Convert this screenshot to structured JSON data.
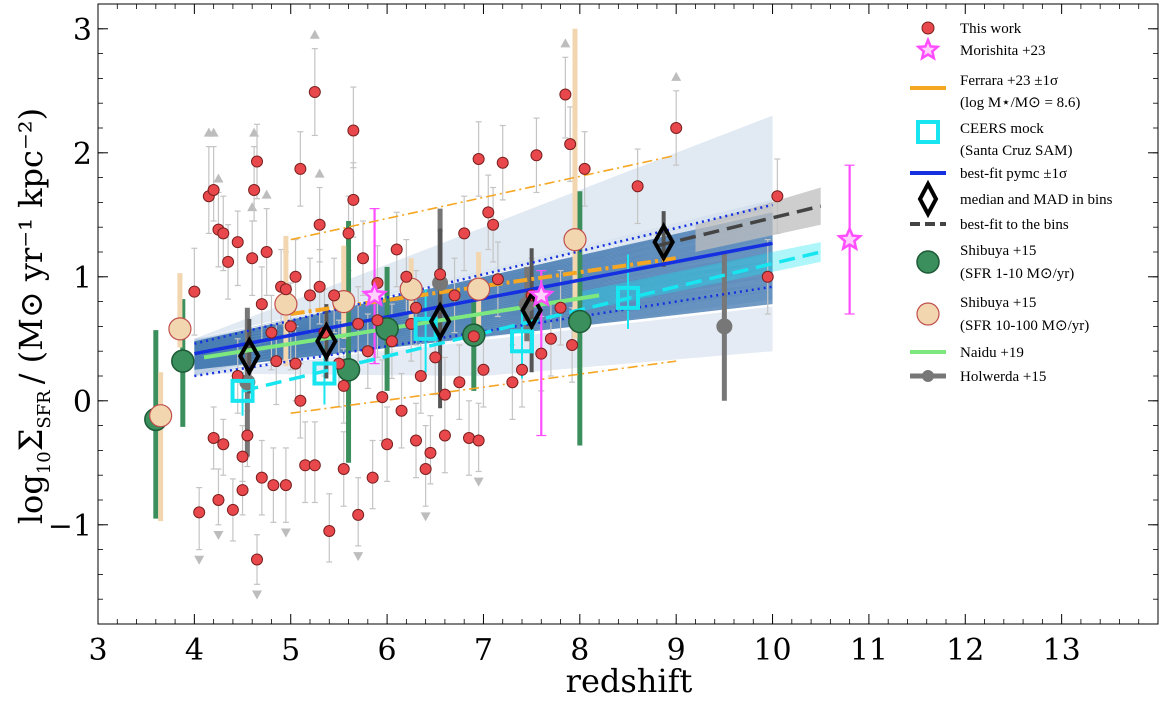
{
  "chart_data": {
    "type": "scatter",
    "xlabel": "redshift",
    "ylabel": "log10 ΣSFR / (M⊙ yr⁻¹ kpc⁻²)",
    "ylabel_parts": {
      "prefix": "log",
      "sub10": "10",
      "sigma": "Σ",
      "sub_sfr": "SFR",
      "units": "/ (M⊙ yr⁻¹ kpc⁻²)"
    },
    "xlim": [
      3,
      14
    ],
    "ylim": [
      -1.8,
      3.2
    ],
    "xticks": [
      3,
      4,
      5,
      6,
      7,
      8,
      9,
      10,
      11,
      12,
      13
    ],
    "yticks": [
      -1,
      0,
      1,
      2,
      3
    ],
    "ytick_labels": [
      "−1",
      "0",
      "1",
      "2",
      "3"
    ],
    "legend_position": "top-right",
    "legend": [
      {
        "name": "This work",
        "name2": ""
      },
      {
        "name": "Morishita +23",
        "name2": ""
      },
      {
        "name": "Ferrara +23 ±1σ",
        "name2": "(log M⋆/M⊙ = 8.6)"
      },
      {
        "name": "CEERS mock",
        "name2": "(Santa Cruz SAM)"
      },
      {
        "name": "best-fit pymc ±1σ",
        "name2": ""
      },
      {
        "name": "median and MAD in bins",
        "name2": ""
      },
      {
        "name": "best-fit to the bins",
        "name2": ""
      },
      {
        "name": "Shibuya +15",
        "name2": "(SFR 1-10 M⊙/yr)"
      },
      {
        "name": "Shibuya +15",
        "name2": "(SFR 10-100 M⊙/yr)"
      },
      {
        "name": "Naidu +19",
        "name2": ""
      },
      {
        "name": "Holwerda +15",
        "name2": ""
      }
    ],
    "colors": {
      "this_work": "#e8484b",
      "morishita": "#ff4dff",
      "ferrara": "#f5a623",
      "ceers": "#17e6f0",
      "pymc": "#1530e0",
      "pymc_band": "#3a7bbd",
      "median": "#000000",
      "bins_fit": "#444444",
      "shibuya_low": "#3a8f5c",
      "shibuya_high": "#f2d6b0",
      "naidu": "#7de87d",
      "holwerda": "#777777"
    },
    "pymc_fit": {
      "x": [
        4,
        10
      ],
      "y": [
        0.38,
        1.27
      ],
      "band_low": [
        0.2,
        0.82
      ],
      "band_high": [
        0.5,
        1.62
      ]
    },
    "pymc_sigma": {
      "upper": [
        [
          4,
          0.46
        ],
        [
          10,
          1.58
        ]
      ],
      "lower": [
        [
          4,
          0.2
        ],
        [
          10,
          0.92
        ]
      ]
    },
    "bins_fit": {
      "x": [
        8.8,
        10.5
      ],
      "y": [
        1.25,
        1.57
      ]
    },
    "ferrara": {
      "mid": [
        [
          5,
          0.7
        ],
        [
          9,
          1.15
        ]
      ],
      "upper": [
        [
          5,
          1.3
        ],
        [
          9,
          1.98
        ]
      ],
      "lower": [
        [
          5,
          -0.1
        ],
        [
          9,
          0.32
        ]
      ]
    },
    "ceers_fit": [
      [
        4.5,
        0.08
      ],
      [
        10.5,
        1.2
      ]
    ],
    "naidu_fit": [
      [
        4.1,
        0.35
      ],
      [
        8.2,
        0.85
      ]
    ],
    "this_work": [
      [
        4.0,
        0.88,
        0.35,
        0.35,
        false
      ],
      [
        4.05,
        -0.9,
        0.3,
        0.2,
        true
      ],
      [
        4.15,
        1.65,
        0.3,
        0.4,
        true
      ],
      [
        4.2,
        1.7,
        0.25,
        0.35,
        true
      ],
      [
        4.25,
        1.38,
        0.3,
        0.3,
        true
      ],
      [
        4.3,
        1.35,
        0.3,
        0.3,
        false
      ],
      [
        4.2,
        -0.3,
        0.25,
        0.25,
        false
      ],
      [
        4.25,
        -0.8,
        0.2,
        0.25,
        true
      ],
      [
        4.3,
        -0.35,
        0.25,
        0.2,
        false
      ],
      [
        4.35,
        1.12,
        0.3,
        0.3,
        false
      ],
      [
        4.4,
        -0.88,
        0.25,
        0.25,
        false
      ],
      [
        4.45,
        1.28,
        0.35,
        0.25,
        false
      ],
      [
        4.5,
        -0.45,
        0.2,
        0.25,
        true
      ],
      [
        4.5,
        -0.72,
        0.2,
        0.3,
        false
      ],
      [
        4.55,
        -0.28,
        0.25,
        0.2,
        false
      ],
      [
        4.6,
        1.15,
        0.3,
        0.3,
        true
      ],
      [
        4.62,
        1.7,
        0.25,
        0.35,
        true
      ],
      [
        4.65,
        1.93,
        0.3,
        0.3,
        false
      ],
      [
        4.65,
        -1.28,
        0.2,
        0.2,
        true
      ],
      [
        4.7,
        -0.62,
        0.3,
        0.3,
        false
      ],
      [
        4.7,
        0.78,
        0.3,
        0.3,
        false
      ],
      [
        4.75,
        1.2,
        0.35,
        0.35,
        true
      ],
      [
        4.8,
        0.55,
        0.3,
        0.3,
        false
      ],
      [
        4.82,
        -0.68,
        0.3,
        0.3,
        false
      ],
      [
        4.85,
        0.32,
        0.35,
        0.3,
        false
      ],
      [
        4.9,
        0.92,
        0.3,
        0.3,
        false
      ],
      [
        4.95,
        -0.68,
        0.3,
        0.3,
        true
      ],
      [
        5.0,
        0.6,
        0.35,
        0.35,
        false
      ],
      [
        5.05,
        1.0,
        0.3,
        0.3,
        false
      ],
      [
        5.1,
        0.0,
        0.3,
        0.3,
        false
      ],
      [
        5.1,
        1.87,
        0.3,
        0.3,
        false
      ],
      [
        5.15,
        -0.52,
        0.3,
        0.35,
        false
      ],
      [
        5.2,
        0.85,
        0.3,
        0.3,
        false
      ],
      [
        5.25,
        2.49,
        0.35,
        0.35,
        true
      ],
      [
        5.25,
        -0.52,
        0.3,
        0.35,
        false
      ],
      [
        5.3,
        1.42,
        0.3,
        0.3,
        true
      ],
      [
        5.35,
        0.55,
        0.35,
        0.35,
        false
      ],
      [
        5.4,
        -1.05,
        0.25,
        0.3,
        false
      ],
      [
        5.45,
        0.85,
        0.3,
        0.3,
        false
      ],
      [
        5.5,
        0.3,
        0.35,
        0.35,
        false
      ],
      [
        5.55,
        -0.55,
        0.3,
        0.3,
        false
      ],
      [
        5.6,
        1.35,
        0.3,
        0.3,
        false
      ],
      [
        5.65,
        2.18,
        0.3,
        0.35,
        false
      ],
      [
        5.65,
        1.62,
        0.3,
        0.3,
        false
      ],
      [
        5.7,
        -0.92,
        0.25,
        0.3,
        true
      ],
      [
        5.7,
        0.62,
        0.3,
        0.3,
        false
      ],
      [
        5.75,
        1.15,
        0.3,
        0.3,
        false
      ],
      [
        5.8,
        0.4,
        0.3,
        0.3,
        false
      ],
      [
        5.85,
        -0.62,
        0.25,
        0.3,
        false
      ],
      [
        5.9,
        0.95,
        0.3,
        0.3,
        false
      ],
      [
        5.95,
        0.03,
        0.35,
        0.3,
        false
      ],
      [
        6.0,
        -0.35,
        0.3,
        0.3,
        false
      ],
      [
        6.05,
        0.48,
        0.3,
        0.3,
        false
      ],
      [
        6.1,
        1.22,
        0.3,
        0.3,
        false
      ],
      [
        6.15,
        -0.08,
        0.3,
        0.3,
        false
      ],
      [
        6.2,
        1.0,
        0.3,
        0.3,
        false
      ],
      [
        6.25,
        0.62,
        0.3,
        0.3,
        false
      ],
      [
        6.3,
        -0.32,
        0.3,
        0.3,
        false
      ],
      [
        6.35,
        0.2,
        0.3,
        0.3,
        false
      ],
      [
        6.4,
        -0.55,
        0.3,
        0.35,
        true
      ],
      [
        6.45,
        -0.42,
        0.25,
        0.3,
        false
      ],
      [
        6.5,
        0.35,
        0.3,
        0.3,
        false
      ],
      [
        6.55,
        1.02,
        0.3,
        0.35,
        false
      ],
      [
        6.6,
        0.05,
        0.3,
        0.3,
        false
      ],
      [
        6.6,
        -0.28,
        0.3,
        0.3,
        false
      ],
      [
        6.7,
        0.85,
        0.3,
        0.3,
        false
      ],
      [
        6.75,
        0.15,
        0.3,
        0.3,
        false
      ],
      [
        6.8,
        1.35,
        0.3,
        0.3,
        false
      ],
      [
        6.85,
        -0.3,
        0.3,
        0.3,
        false
      ],
      [
        6.9,
        0.52,
        0.3,
        0.3,
        false
      ],
      [
        6.95,
        1.95,
        0.3,
        0.3,
        false
      ],
      [
        6.95,
        -0.32,
        0.25,
        0.3,
        true
      ],
      [
        7.0,
        0.25,
        0.3,
        0.3,
        false
      ],
      [
        7.05,
        1.52,
        0.3,
        0.3,
        false
      ],
      [
        7.1,
        1.42,
        0.3,
        0.3,
        false
      ],
      [
        7.15,
        0.98,
        0.3,
        0.3,
        false
      ],
      [
        7.2,
        1.92,
        0.3,
        0.3,
        false
      ],
      [
        7.3,
        0.15,
        0.3,
        0.3,
        false
      ],
      [
        7.4,
        0.25,
        0.3,
        0.3,
        false
      ],
      [
        7.5,
        0.85,
        0.3,
        0.3,
        false
      ],
      [
        7.55,
        1.98,
        0.3,
        0.3,
        false
      ],
      [
        7.6,
        0.38,
        0.3,
        0.3,
        false
      ],
      [
        7.7,
        0.5,
        0.3,
        0.3,
        false
      ],
      [
        7.8,
        0.75,
        0.3,
        0.3,
        false
      ],
      [
        7.85,
        2.47,
        0.35,
        0.3,
        true
      ],
      [
        7.9,
        2.07,
        0.3,
        0.3,
        false
      ],
      [
        7.92,
        0.45,
        0.3,
        0.3,
        false
      ],
      [
        8.05,
        1.87,
        0.3,
        0.3,
        false
      ],
      [
        8.6,
        1.73,
        0.3,
        0.3,
        false
      ],
      [
        9.0,
        2.2,
        0.3,
        0.3,
        true
      ],
      [
        9.95,
        1.0,
        0.3,
        0.3,
        false
      ],
      [
        10.05,
        1.65,
        0.3,
        0.3,
        false
      ],
      [
        4.95,
        0.9,
        0.3,
        0.3,
        false
      ],
      [
        5.05,
        0.3,
        0.3,
        0.3,
        false
      ],
      [
        4.45,
        0.2,
        0.3,
        0.3,
        false
      ],
      [
        5.9,
        0.65,
        0.3,
        0.3,
        false
      ],
      [
        6.3,
        0.75,
        0.3,
        0.3,
        false
      ],
      [
        5.3,
        0.92,
        0.3,
        0.3,
        false
      ],
      [
        5.55,
        0.12,
        0.3,
        0.3,
        false
      ]
    ],
    "morishita": [
      [
        5.87,
        0.85,
        0.55,
        0.7
      ],
      [
        7.6,
        0.85,
        1.13,
        0.2
      ],
      [
        10.8,
        1.3,
        0.6,
        0.6
      ]
    ],
    "ceers": [
      [
        4.5,
        0.08,
        0.2,
        0.15
      ],
      [
        5.35,
        0.22,
        0.25,
        0.22
      ],
      [
        6.4,
        0.58,
        0.35,
        0.32
      ],
      [
        7.4,
        0.48,
        0.3,
        0.3
      ],
      [
        8.5,
        0.83,
        0.25,
        0.35
      ]
    ],
    "median": [
      [
        4.57,
        0.36,
        0.3,
        0.3
      ],
      [
        5.37,
        0.48,
        0.3,
        0.3
      ],
      [
        6.55,
        0.64,
        0.7,
        0.75
      ],
      [
        7.5,
        0.73,
        0.5,
        0.5
      ],
      [
        8.87,
        1.28,
        0.2,
        0.25
      ]
    ],
    "shibuya_low": [
      [
        3.6,
        -0.15,
        0.8,
        0.72
      ],
      [
        3.88,
        0.32,
        0.53,
        0.5
      ],
      [
        5.6,
        0.25,
        0.75,
        1.2
      ],
      [
        6.0,
        0.58,
        0.5,
        0.5
      ],
      [
        6.9,
        0.53,
        0.45,
        0.4
      ],
      [
        8.0,
        0.64,
        1.0,
        1.05
      ]
    ],
    "shibuya_high": [
      [
        3.65,
        -0.12,
        0.85,
        0.35
      ],
      [
        3.85,
        0.58,
        0.15,
        0.45
      ],
      [
        4.95,
        0.78,
        0.5,
        0.55
      ],
      [
        5.55,
        0.8,
        0.3,
        0.45
      ],
      [
        6.25,
        0.9,
        0.25,
        0.25
      ],
      [
        6.95,
        0.9,
        0.3,
        0.3
      ],
      [
        7.95,
        1.3,
        0.8,
        1.7
      ]
    ],
    "holwerda": [
      [
        4.55,
        0.15,
        0.6,
        0.6
      ],
      [
        6.55,
        0.95,
        0.4,
        0.6
      ],
      [
        7.45,
        0.78,
        0.3,
        0.3
      ],
      [
        9.5,
        0.6,
        0.6,
        0.6
      ]
    ]
  }
}
